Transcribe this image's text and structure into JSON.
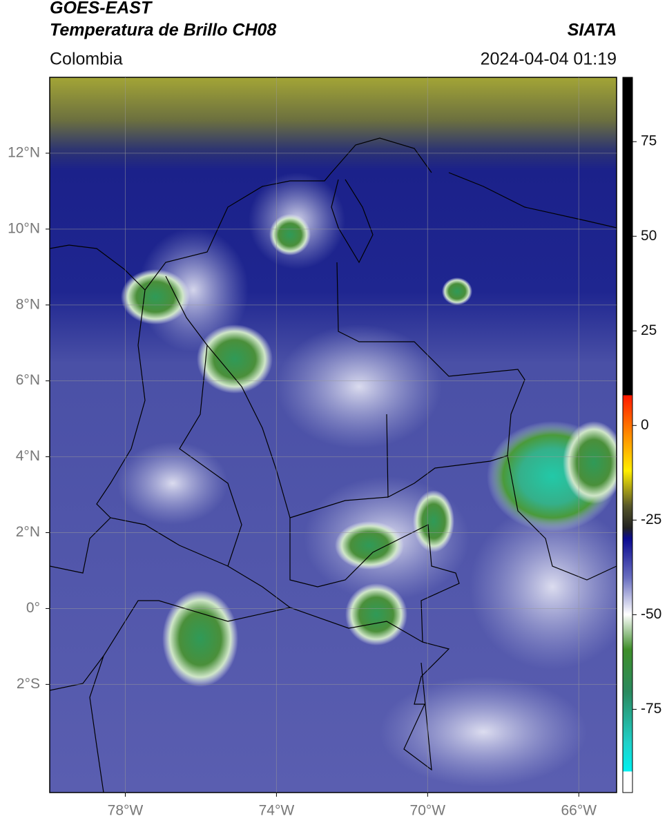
{
  "header": {
    "title": "GOES-EAST",
    "subtitle": "Temperatura de Brillo CH08",
    "source": "SIATA",
    "region": "Colombia",
    "datetime": "2024-04-04 01:19"
  },
  "map": {
    "xlim": [
      -80,
      -65
    ],
    "ylim": [
      -4.85,
      14
    ],
    "lat_ticks": [
      {
        "value": 12,
        "label": "12°N"
      },
      {
        "value": 10,
        "label": "10°N"
      },
      {
        "value": 8,
        "label": "8°N"
      },
      {
        "value": 6,
        "label": "6°N"
      },
      {
        "value": 4,
        "label": "4°N"
      },
      {
        "value": 2,
        "label": "2°N"
      },
      {
        "value": 0,
        "label": "0°"
      },
      {
        "value": -2,
        "label": "2°S"
      }
    ],
    "lon_ticks": [
      {
        "value": -78,
        "label": "78°W"
      },
      {
        "value": -74,
        "label": "74°W"
      },
      {
        "value": -70,
        "label": "70°W"
      },
      {
        "value": -66,
        "label": "66°W"
      }
    ]
  },
  "colorbar": {
    "lim": [
      -97,
      92
    ],
    "ticks": [
      75,
      50,
      25,
      0,
      -25,
      -50,
      -75
    ]
  }
}
